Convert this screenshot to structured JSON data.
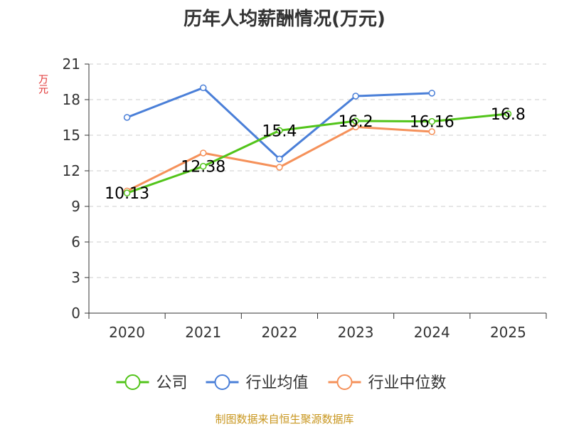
{
  "chart_data": {
    "type": "line",
    "title": "历年人均薪酬情况(万元)",
    "ylabel": "万元",
    "ylim": [
      0,
      21
    ],
    "yticks": [
      0,
      3,
      6,
      9,
      12,
      15,
      18,
      21
    ],
    "categories": [
      "2020",
      "2021",
      "2022",
      "2023",
      "2024",
      "2025"
    ],
    "grid": true,
    "legend_position": "bottom",
    "series": [
      {
        "name": "公司",
        "color": "#52c41a",
        "values": [
          10.13,
          12.38,
          15.4,
          16.2,
          16.16,
          16.8
        ],
        "labels": [
          "10.13",
          "12.38",
          "15.4",
          "16.2",
          "16.16",
          "16.8"
        ]
      },
      {
        "name": "行业均值",
        "color": "#4a7fd8",
        "values": [
          16.5,
          19.0,
          13.0,
          18.3,
          18.55,
          null
        ]
      },
      {
        "name": "行业中位数",
        "color": "#f5915a",
        "values": [
          10.3,
          13.5,
          12.3,
          15.7,
          15.3,
          null
        ]
      }
    ]
  },
  "source": "制图数据来自恒生聚源数据库",
  "colors": {
    "ylabel": "#e03030",
    "source": "#c8961e",
    "axis": "#333333",
    "grid": "#cccccc",
    "title": "#333333"
  }
}
